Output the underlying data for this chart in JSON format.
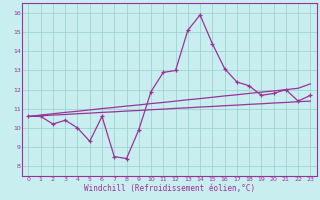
{
  "xlabel": "Windchill (Refroidissement éolien,°C)",
  "background_color": "#c8eef0",
  "grid_color": "#99cccc",
  "line_color": "#993399",
  "spine_color": "#993399",
  "xlim": [
    -0.5,
    23.5
  ],
  "ylim": [
    7.5,
    16.5
  ],
  "xticks": [
    0,
    1,
    2,
    3,
    4,
    5,
    6,
    7,
    8,
    9,
    10,
    11,
    12,
    13,
    14,
    15,
    16,
    17,
    18,
    19,
    20,
    21,
    22,
    23
  ],
  "yticks": [
    8,
    9,
    10,
    11,
    12,
    13,
    14,
    15,
    16
  ],
  "main_series": [
    10.6,
    10.6,
    10.2,
    10.4,
    10.0,
    9.3,
    10.6,
    8.5,
    8.4,
    9.9,
    11.9,
    12.9,
    13.0,
    15.1,
    15.9,
    14.4,
    13.1,
    12.4,
    12.2,
    11.7,
    11.8,
    12.0,
    11.4,
    11.7
  ],
  "smooth_line1": [
    10.6,
    10.63,
    10.67,
    10.7,
    10.74,
    10.77,
    10.81,
    10.84,
    10.88,
    10.91,
    10.95,
    10.98,
    11.02,
    11.05,
    11.09,
    11.12,
    11.16,
    11.19,
    11.23,
    11.26,
    11.3,
    11.33,
    11.37,
    11.4
  ],
  "smooth_line2": [
    10.6,
    10.67,
    10.74,
    10.81,
    10.87,
    10.94,
    11.01,
    11.07,
    11.14,
    11.2,
    11.27,
    11.33,
    11.4,
    11.47,
    11.53,
    11.6,
    11.67,
    11.73,
    11.8,
    11.87,
    11.93,
    12.0,
    12.07,
    12.3
  ],
  "tick_fontsize": 4.5,
  "xlabel_fontsize": 5.5
}
